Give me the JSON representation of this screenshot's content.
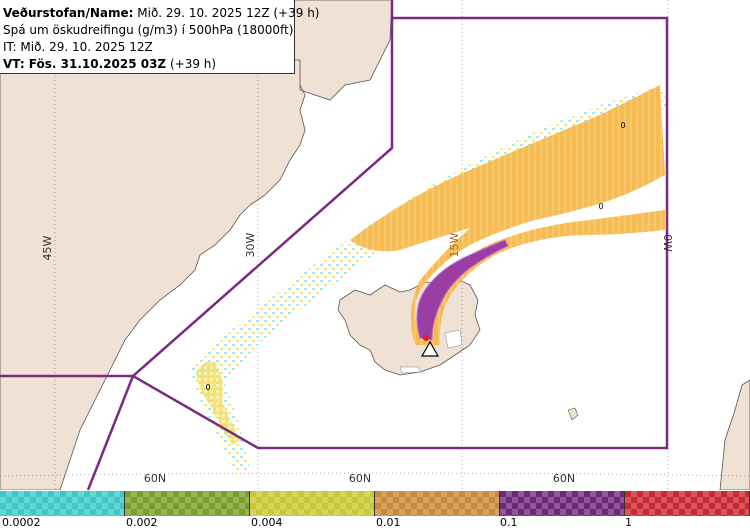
{
  "header": {
    "name_label": "Veðurstofan/Name:",
    "name_value": "Mið. 29. 10. 2025 12Z (+39 h)",
    "subtitle": "Spá um öskudreifingu (g/m3) í 500hPa (18000ft)",
    "it_line": "IT: Mið. 29. 10. 2025 12Z",
    "vt_label": "VT: Fös. 31.10.2025 03Z",
    "vt_value": "(+39 h)"
  },
  "map": {
    "meridian_labels": [
      "45W",
      "30W",
      "15W",
      "0W"
    ],
    "parallel_labels": [
      "60N",
      "60N",
      "60N"
    ],
    "contour_labels": [
      "0",
      "0",
      "0"
    ],
    "volcano_marker": "triangle-warning-icon"
  },
  "legend": {
    "tick_labels": [
      "0.0002",
      "0.002",
      "0.004",
      "0.01",
      "0.1",
      "1"
    ],
    "colors": [
      "#3dc8c8",
      "#7a9e2a",
      "#c8c834",
      "#c98a3a",
      "#6e2a78",
      "#c82832"
    ]
  },
  "colors": {
    "land": "#efe1d4",
    "sea": "#ffffff",
    "boundary": "#7a2a80",
    "plume_orange": "#f7b84a",
    "plume_purple": "#9b3ea3",
    "plume_yellow": "#f3e36a",
    "plume_cyan": "#9be8e8"
  }
}
